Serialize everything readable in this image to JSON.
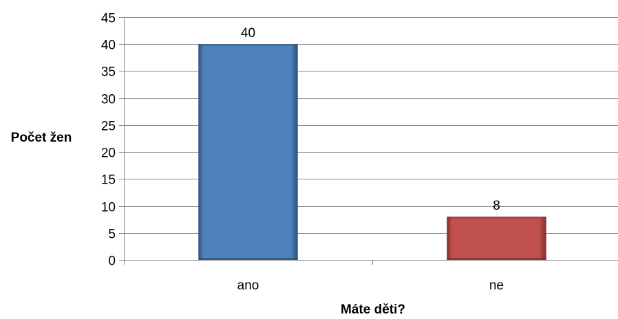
{
  "chart_data": {
    "type": "bar",
    "title": "",
    "xlabel": "Máte děti?",
    "ylabel": "Počet žen",
    "categories": [
      "ano",
      "ne"
    ],
    "values": [
      40,
      8
    ],
    "data_labels": [
      "40",
      "8"
    ],
    "ylim": [
      0,
      45
    ],
    "y_ticks": [
      0,
      5,
      10,
      15,
      20,
      25,
      30,
      35,
      40,
      45
    ],
    "y_tick_labels": [
      "0",
      "5",
      "10",
      "15",
      "20",
      "25",
      "30",
      "35",
      "40",
      "45"
    ],
    "grid": true,
    "legend": "none",
    "bar_colors": [
      "#4F81BD",
      "#C0504D"
    ],
    "bar_edge_colors": [
      "#2E4F7A",
      "#7E2E2C"
    ],
    "grid_color": "#878787",
    "axis_color": "#878787"
  }
}
